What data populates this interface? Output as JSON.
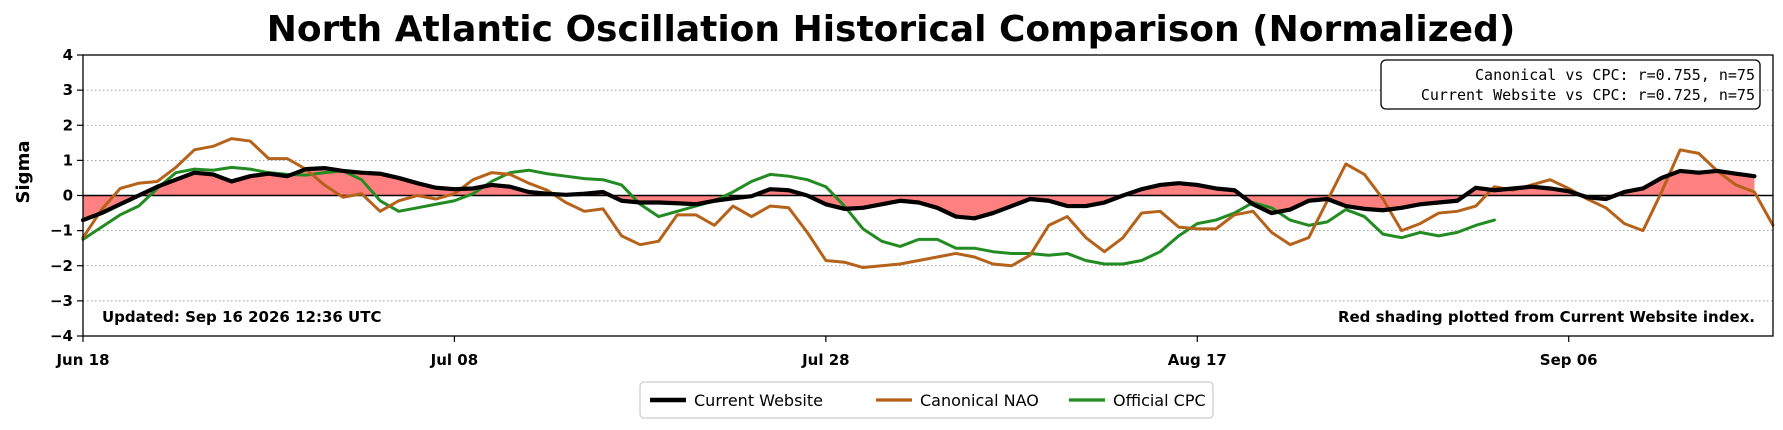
{
  "chart_data": {
    "type": "line",
    "title": "North Atlantic Oscillation Historical Comparison (Normalized)",
    "ylabel": "Sigma",
    "xlabel": "",
    "ylim": [
      -4,
      4
    ],
    "xlim": [
      "2026-06-18",
      "2026-09-17"
    ],
    "yticks": [
      "−4",
      "−3",
      "−2",
      "−1",
      "0",
      "1",
      "2",
      "3",
      "4"
    ],
    "xticks": [
      {
        "date": "2026-06-18",
        "label": "Jun 18"
      },
      {
        "date": "2026-07-08",
        "label": "Jul 08"
      },
      {
        "date": "2026-07-28",
        "label": "Jul 28"
      },
      {
        "date": "2026-08-17",
        "label": "Aug 17"
      },
      {
        "date": "2026-09-06",
        "label": "Sep 06"
      }
    ],
    "grid": "horizontal-dotted",
    "legend_placement": "bottom-center",
    "shading": {
      "series": "Current Website",
      "color": "#ff8080"
    },
    "stats_box": [
      "Canonical vs CPC: r=0.755, n=75",
      "Current Website vs CPC: r=0.725, n=75"
    ],
    "note_left": "Updated: Sep 16 2026 12:36 UTC",
    "note_right": "Red shading plotted from Current Website index.",
    "start_date": "2026-06-18",
    "series": [
      {
        "name": "Current Website",
        "color": "#000000",
        "values": [
          -0.7,
          -0.5,
          -0.25,
          0.0,
          0.25,
          0.45,
          0.65,
          0.6,
          0.4,
          0.55,
          0.62,
          0.55,
          0.75,
          0.78,
          0.7,
          0.65,
          0.62,
          0.5,
          0.35,
          0.22,
          0.18,
          0.2,
          0.3,
          0.25,
          0.1,
          0.05,
          0.02,
          0.05,
          0.1,
          -0.15,
          -0.2,
          -0.2,
          -0.22,
          -0.25,
          -0.15,
          -0.08,
          -0.02,
          0.18,
          0.15,
          0.0,
          -0.25,
          -0.38,
          -0.35,
          -0.25,
          -0.15,
          -0.2,
          -0.35,
          -0.6,
          -0.65,
          -0.5,
          -0.3,
          -0.1,
          -0.15,
          -0.3,
          -0.3,
          -0.2,
          0.0,
          0.18,
          0.3,
          0.35,
          0.3,
          0.2,
          0.15,
          -0.25,
          -0.5,
          -0.4,
          -0.15,
          -0.1,
          -0.3,
          -0.38,
          -0.42,
          -0.35,
          -0.25,
          -0.2,
          -0.15,
          0.22,
          0.15,
          0.2,
          0.25,
          0.2,
          0.12,
          -0.05,
          -0.1,
          0.1,
          0.2,
          0.5,
          0.7,
          0.65,
          0.7,
          0.62,
          0.55
        ]
      },
      {
        "name": "Canonical NAO",
        "color": "#b5621a",
        "values": [
          -1.2,
          -0.4,
          0.2,
          0.35,
          0.4,
          0.8,
          1.3,
          1.4,
          1.62,
          1.55,
          1.05,
          1.05,
          0.75,
          0.3,
          -0.05,
          0.05,
          -0.45,
          -0.15,
          0.0,
          -0.1,
          0.05,
          0.45,
          0.65,
          0.6,
          0.35,
          0.15,
          -0.2,
          -0.45,
          -0.38,
          -1.15,
          -1.4,
          -1.3,
          -0.55,
          -0.55,
          -0.85,
          -0.3,
          -0.6,
          -0.3,
          -0.35,
          -1.05,
          -1.85,
          -1.9,
          -2.05,
          -2.0,
          -1.95,
          -1.85,
          -1.75,
          -1.65,
          -1.75,
          -1.95,
          -2.0,
          -1.7,
          -0.85,
          -0.6,
          -1.2,
          -1.6,
          -1.2,
          -0.5,
          -0.45,
          -0.9,
          -0.95,
          -0.95,
          -0.55,
          -0.45,
          -1.05,
          -1.4,
          -1.2,
          -0.15,
          0.9,
          0.6,
          -0.1,
          -1.0,
          -0.8,
          -0.5,
          -0.45,
          -0.3,
          0.25,
          0.15,
          0.3,
          0.45,
          0.2,
          -0.1,
          -0.35,
          -0.8,
          -1.0,
          0.1,
          1.3,
          1.2,
          0.7,
          0.3,
          0.1,
          -0.85
        ]
      },
      {
        "name": "Official CPC",
        "color": "#228b22",
        "values": [
          -1.25,
          -0.9,
          -0.55,
          -0.3,
          0.2,
          0.65,
          0.75,
          0.72,
          0.8,
          0.75,
          0.65,
          0.6,
          0.58,
          0.65,
          0.7,
          0.45,
          -0.15,
          -0.45,
          -0.35,
          -0.25,
          -0.15,
          0.05,
          0.4,
          0.65,
          0.72,
          0.62,
          0.55,
          0.48,
          0.45,
          0.3,
          -0.25,
          -0.6,
          -0.45,
          -0.3,
          -0.15,
          0.1,
          0.4,
          0.6,
          0.55,
          0.45,
          0.25,
          -0.3,
          -0.95,
          -1.3,
          -1.45,
          -1.25,
          -1.25,
          -1.5,
          -1.5,
          -1.6,
          -1.65,
          -1.65,
          -1.7,
          -1.65,
          -1.85,
          -1.95,
          -1.95,
          -1.85,
          -1.6,
          -1.15,
          -0.8,
          -0.7,
          -0.5,
          -0.2,
          -0.35,
          -0.7,
          -0.85,
          -0.75,
          -0.4,
          -0.6,
          -1.1,
          -1.2,
          -1.05,
          -1.15,
          -1.05,
          -0.85,
          -0.7
        ]
      }
    ]
  }
}
